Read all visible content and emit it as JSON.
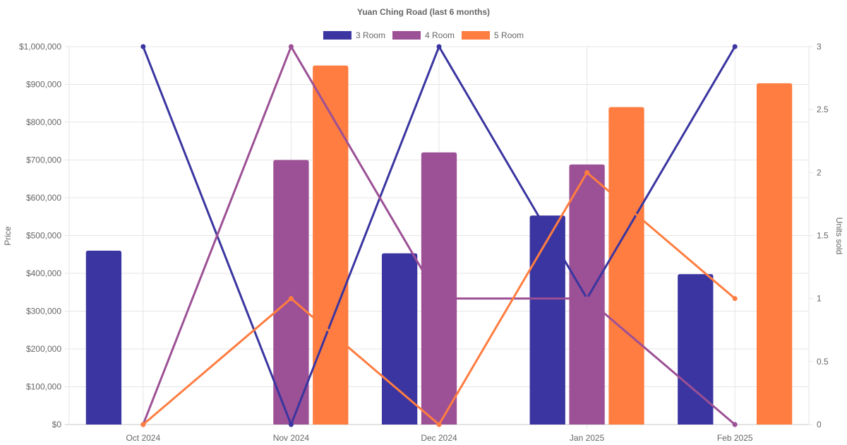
{
  "chart_data": {
    "type": "bar",
    "title": "Yuan Ching Road (last 6 months)",
    "categories": [
      "Oct 2024",
      "Nov 2024",
      "Dec 2024",
      "Jan 2025",
      "Feb 2025"
    ],
    "y_left": {
      "label": "Price",
      "min": 0,
      "max": 1000000,
      "ticks": [
        0,
        100000,
        200000,
        300000,
        400000,
        500000,
        600000,
        700000,
        800000,
        900000,
        1000000
      ],
      "tick_labels": [
        "$0",
        "$100,000",
        "$200,000",
        "$300,000",
        "$400,000",
        "$500,000",
        "$600,000",
        "$700,000",
        "$800,000",
        "$900,000",
        "$1,000,000"
      ]
    },
    "y_right": {
      "label": "Units sold",
      "min": 0,
      "max": 3,
      "ticks": [
        0,
        0.5,
        1,
        1.5,
        2,
        2.5,
        3
      ],
      "tick_labels": [
        "0",
        "0.5",
        "1",
        "1.5",
        "2",
        "2.5",
        "3"
      ]
    },
    "grid": true,
    "legend_position": "top-center",
    "series": [
      {
        "name": "3 Room",
        "color": "#3a35a0",
        "price_values": [
          460000,
          null,
          453000,
          553000,
          398000
        ],
        "units_sold": [
          3,
          0,
          3,
          1,
          3
        ]
      },
      {
        "name": "4 Room",
        "color": "#9c5095",
        "price_values": [
          null,
          700000,
          720000,
          688000,
          null
        ],
        "units_sold": [
          0,
          3,
          1,
          1,
          0
        ]
      },
      {
        "name": "5 Room",
        "color": "#ff7d40",
        "price_values": [
          null,
          950000,
          null,
          840000,
          903000
        ],
        "units_sold": [
          0,
          1,
          0,
          2,
          1
        ]
      }
    ]
  }
}
